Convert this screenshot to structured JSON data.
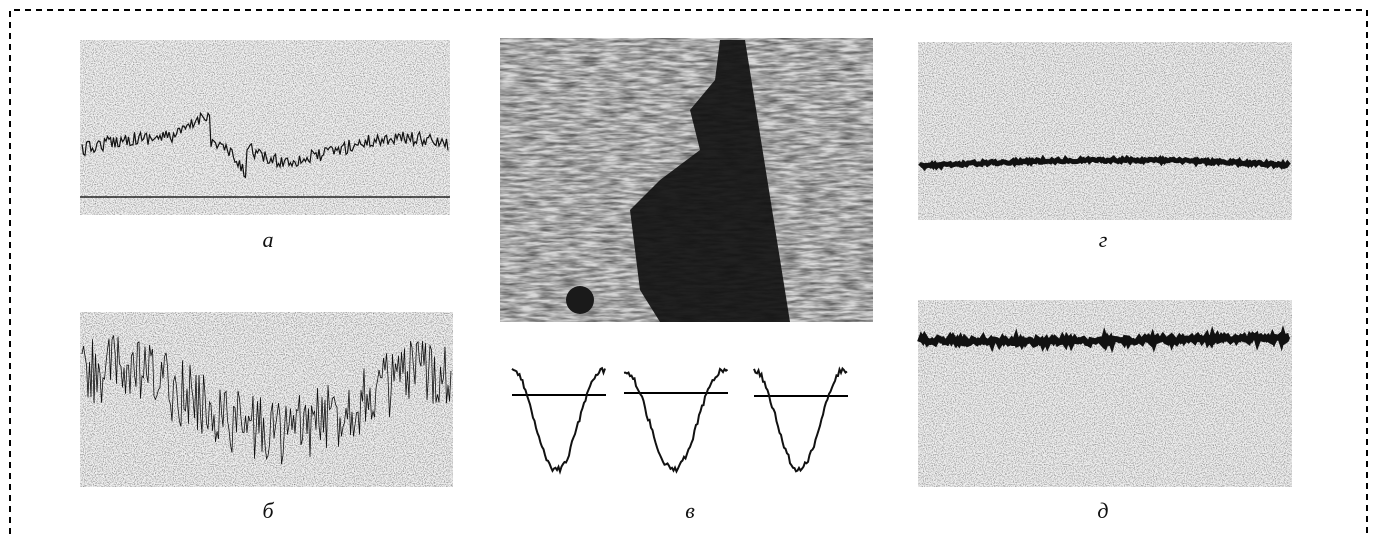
{
  "panels": [
    {
      "label": "а"
    },
    {
      "label": "б"
    },
    {
      "label": "в"
    },
    {
      "label": "г"
    },
    {
      "label": "д"
    }
  ]
}
